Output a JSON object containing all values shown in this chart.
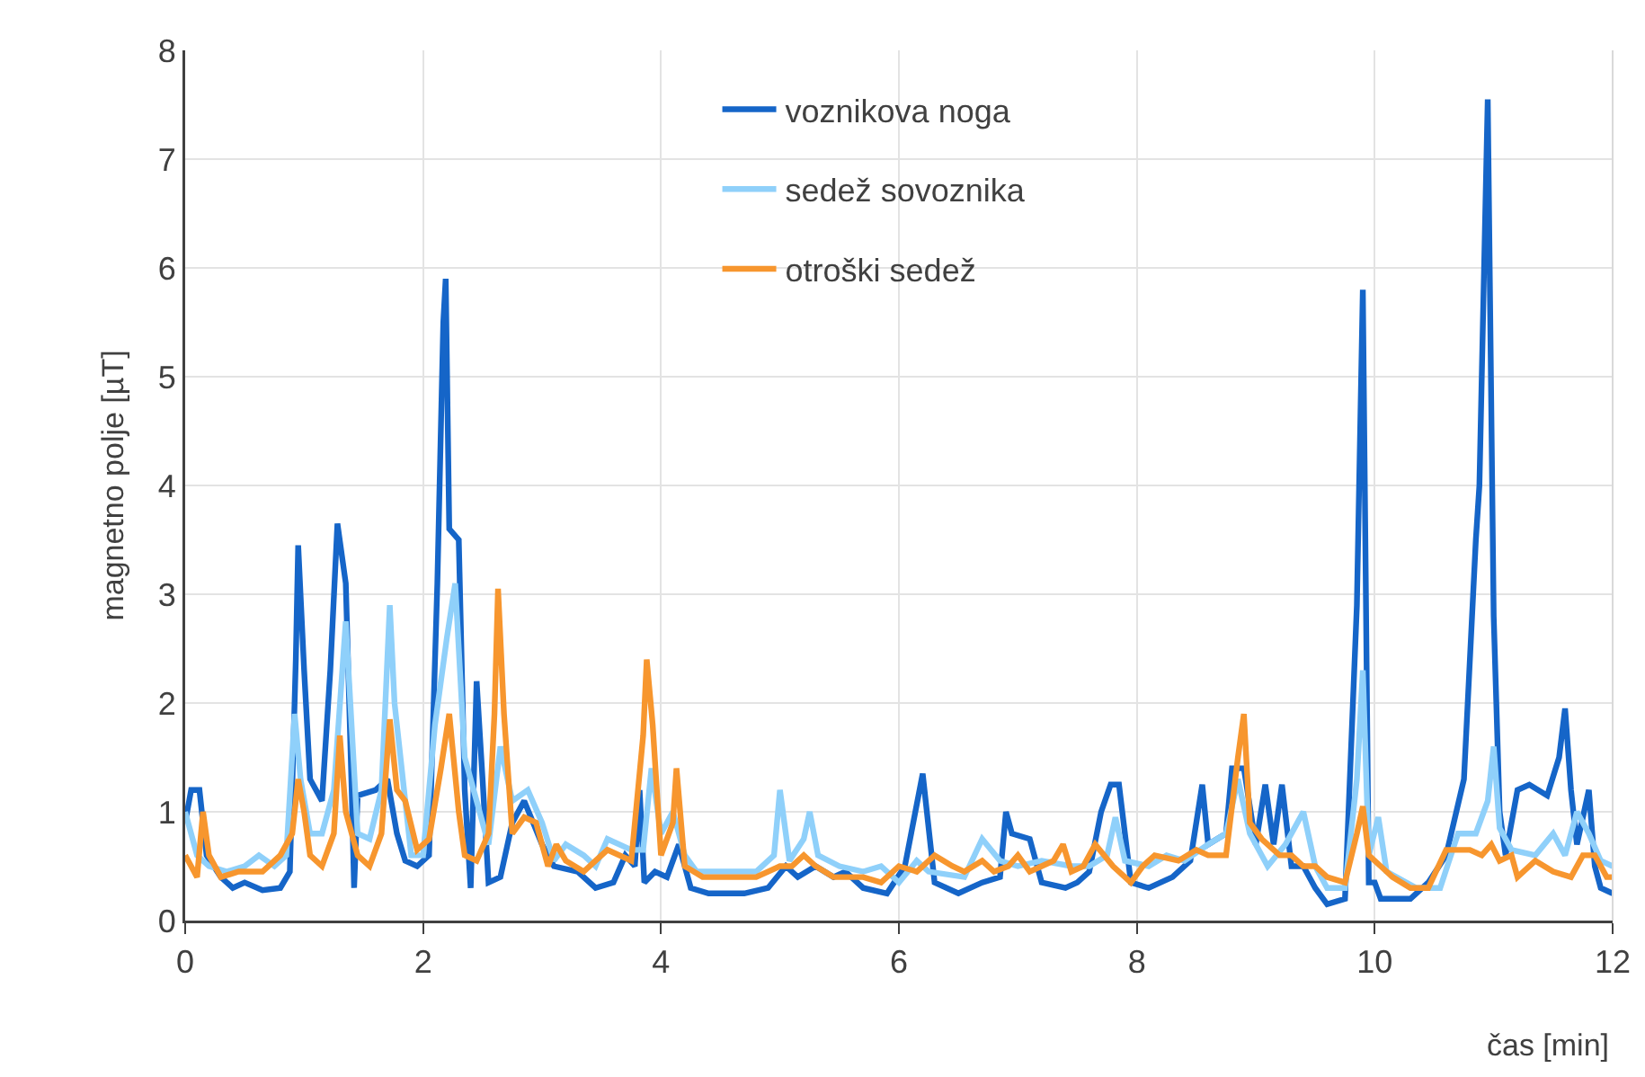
{
  "chart_data": {
    "type": "line",
    "xlabel": "čas [min]",
    "ylabel": "magnetno polje [µT]",
    "xlim": [
      0,
      12
    ],
    "xticks": [
      0,
      2,
      4,
      6,
      8,
      10,
      12
    ],
    "ylim": [
      0,
      8
    ],
    "yticks": [
      0,
      1,
      2,
      3,
      4,
      5,
      6,
      7,
      8
    ],
    "grid": true,
    "legend": "top",
    "marker": "none",
    "line_style": "solid",
    "series": [
      {
        "name": "voznikova noga",
        "color": "#1565c8",
        "x": [
          0,
          0.05,
          0.12,
          0.18,
          0.3,
          0.4,
          0.5,
          0.65,
          0.8,
          0.88,
          0.93,
          0.95,
          1.0,
          1.05,
          1.15,
          1.22,
          1.28,
          1.35,
          1.4,
          1.42,
          1.45,
          1.6,
          1.7,
          1.78,
          1.85,
          1.95,
          2.05,
          2.12,
          2.17,
          2.19,
          2.22,
          2.3,
          2.35,
          2.4,
          2.45,
          2.5,
          2.55,
          2.65,
          2.75,
          2.85,
          3.0,
          3.1,
          3.3,
          3.45,
          3.6,
          3.7,
          3.78,
          3.82,
          3.86,
          3.95,
          4.05,
          4.15,
          4.25,
          4.4,
          4.7,
          4.9,
          5.05,
          5.15,
          5.3,
          5.45,
          5.55,
          5.7,
          5.9,
          6.05,
          6.2,
          6.3,
          6.5,
          6.7,
          6.85,
          6.9,
          6.95,
          7.1,
          7.2,
          7.4,
          7.5,
          7.6,
          7.7,
          7.78,
          7.85,
          7.95,
          8.1,
          8.3,
          8.45,
          8.55,
          8.6,
          8.75,
          8.8,
          8.9,
          9.0,
          9.08,
          9.15,
          9.22,
          9.3,
          9.4,
          9.5,
          9.6,
          9.75,
          9.85,
          9.9,
          9.95,
          10.0,
          10.05,
          10.3,
          10.45,
          10.6,
          10.75,
          10.85,
          10.88,
          10.95,
          11.0,
          11.05,
          11.1,
          11.2,
          11.3,
          11.45,
          11.55,
          11.6,
          11.65,
          11.7,
          11.8,
          11.85,
          11.9,
          12.0
        ],
        "values": [
          0.9,
          1.2,
          1.2,
          0.6,
          0.4,
          0.3,
          0.35,
          0.28,
          0.3,
          0.45,
          2.4,
          3.45,
          2.3,
          1.3,
          1.1,
          2.3,
          3.65,
          3.1,
          1.2,
          0.3,
          1.15,
          1.2,
          1.3,
          0.8,
          0.55,
          0.5,
          0.6,
          3.1,
          5.5,
          5.9,
          3.6,
          3.5,
          1.2,
          0.3,
          2.2,
          1.3,
          0.35,
          0.4,
          0.9,
          1.1,
          0.7,
          0.5,
          0.45,
          0.3,
          0.35,
          0.6,
          0.5,
          1.2,
          0.35,
          0.45,
          0.4,
          0.7,
          0.3,
          0.25,
          0.25,
          0.3,
          0.5,
          0.4,
          0.5,
          0.4,
          0.45,
          0.3,
          0.25,
          0.5,
          1.35,
          0.35,
          0.25,
          0.35,
          0.4,
          1.0,
          0.8,
          0.75,
          0.35,
          0.3,
          0.35,
          0.45,
          1.0,
          1.25,
          1.25,
          0.35,
          0.3,
          0.4,
          0.55,
          1.25,
          0.7,
          0.8,
          1.4,
          1.4,
          0.7,
          1.25,
          0.7,
          1.25,
          0.5,
          0.5,
          0.3,
          0.15,
          0.2,
          2.9,
          5.8,
          0.35,
          0.35,
          0.2,
          0.2,
          0.35,
          0.6,
          1.3,
          3.5,
          4.0,
          7.55,
          2.8,
          1.0,
          0.6,
          1.2,
          1.25,
          1.15,
          1.5,
          1.95,
          1.2,
          0.7,
          1.2,
          0.5,
          0.3,
          0.25
        ]
      },
      {
        "name": "sedež sovoznika",
        "color": "#8fd0fa",
        "x": [
          0,
          0.1,
          0.2,
          0.35,
          0.5,
          0.62,
          0.75,
          0.85,
          0.92,
          0.97,
          1.05,
          1.15,
          1.25,
          1.35,
          1.45,
          1.55,
          1.65,
          1.72,
          1.76,
          1.8,
          1.9,
          2.0,
          2.1,
          2.2,
          2.27,
          2.35,
          2.45,
          2.55,
          2.65,
          2.75,
          2.88,
          3.0,
          3.1,
          3.2,
          3.35,
          3.45,
          3.55,
          3.75,
          3.85,
          3.92,
          4.0,
          4.1,
          4.2,
          4.3,
          4.8,
          4.95,
          5.0,
          5.08,
          5.2,
          5.25,
          5.32,
          5.5,
          5.7,
          5.85,
          6.0,
          6.15,
          6.25,
          6.55,
          6.7,
          6.85,
          7.0,
          7.2,
          7.45,
          7.6,
          7.75,
          7.82,
          7.9,
          8.1,
          8.25,
          8.4,
          8.6,
          8.75,
          8.85,
          8.95,
          9.1,
          9.25,
          9.35,
          9.4,
          9.5,
          9.6,
          9.75,
          9.85,
          9.9,
          9.95,
          10.03,
          10.1,
          10.35,
          10.55,
          10.7,
          10.85,
          10.95,
          11.0,
          11.05,
          11.15,
          11.35,
          11.5,
          11.6,
          11.7,
          11.8,
          11.9,
          12.0
        ],
        "values": [
          1.0,
          0.6,
          0.5,
          0.45,
          0.5,
          0.6,
          0.5,
          0.6,
          1.9,
          1.3,
          0.8,
          0.8,
          1.2,
          2.75,
          0.8,
          0.75,
          1.2,
          2.9,
          2.0,
          1.6,
          0.6,
          0.6,
          1.8,
          2.6,
          3.1,
          1.5,
          1.1,
          0.7,
          1.6,
          1.1,
          1.2,
          0.9,
          0.55,
          0.7,
          0.6,
          0.5,
          0.75,
          0.65,
          0.65,
          1.4,
          0.8,
          1.0,
          0.6,
          0.45,
          0.45,
          0.6,
          1.2,
          0.55,
          0.75,
          1.0,
          0.6,
          0.5,
          0.45,
          0.5,
          0.35,
          0.55,
          0.45,
          0.4,
          0.75,
          0.55,
          0.5,
          0.55,
          0.5,
          0.5,
          0.6,
          0.95,
          0.55,
          0.5,
          0.6,
          0.55,
          0.7,
          0.8,
          1.3,
          0.8,
          0.5,
          0.7,
          0.9,
          1.0,
          0.5,
          0.3,
          0.3,
          1.3,
          2.3,
          0.6,
          0.95,
          0.45,
          0.3,
          0.3,
          0.8,
          0.8,
          1.1,
          1.6,
          0.85,
          0.65,
          0.6,
          0.8,
          0.6,
          1.0,
          0.8,
          0.55,
          0.5
        ]
      },
      {
        "name": "otroški sedež",
        "color": "#f7962e",
        "x": [
          0,
          0.05,
          0.1,
          0.15,
          0.2,
          0.3,
          0.45,
          0.65,
          0.8,
          0.9,
          0.95,
          1.0,
          1.05,
          1.15,
          1.25,
          1.3,
          1.35,
          1.45,
          1.55,
          1.65,
          1.72,
          1.78,
          1.85,
          1.95,
          2.05,
          2.15,
          2.22,
          2.3,
          2.35,
          2.45,
          2.55,
          2.6,
          2.63,
          2.68,
          2.75,
          2.85,
          2.95,
          3.05,
          3.12,
          3.2,
          3.35,
          3.45,
          3.55,
          3.75,
          3.85,
          3.88,
          3.93,
          4.0,
          4.1,
          4.13,
          4.2,
          4.35,
          4.8,
          5.0,
          5.1,
          5.2,
          5.3,
          5.45,
          5.7,
          5.85,
          6.0,
          6.15,
          6.3,
          6.45,
          6.55,
          6.7,
          6.8,
          6.92,
          7.0,
          7.1,
          7.2,
          7.3,
          7.38,
          7.45,
          7.55,
          7.65,
          7.8,
          7.95,
          8.05,
          8.15,
          8.35,
          8.5,
          8.6,
          8.75,
          8.85,
          8.9,
          8.95,
          9.05,
          9.2,
          9.3,
          9.4,
          9.5,
          9.6,
          9.75,
          9.85,
          9.9,
          9.95,
          10.05,
          10.15,
          10.3,
          10.45,
          10.6,
          10.8,
          10.9,
          10.98,
          11.05,
          11.15,
          11.2,
          11.35,
          11.5,
          11.65,
          11.75,
          11.85,
          11.95,
          12.0
        ],
        "values": [
          0.6,
          0.5,
          0.4,
          1.0,
          0.6,
          0.4,
          0.45,
          0.45,
          0.6,
          0.8,
          1.3,
          1.0,
          0.6,
          0.5,
          0.8,
          1.7,
          1.0,
          0.6,
          0.5,
          0.8,
          1.85,
          1.2,
          1.1,
          0.65,
          0.75,
          1.4,
          1.9,
          1.0,
          0.6,
          0.55,
          0.8,
          1.9,
          3.05,
          1.9,
          0.8,
          0.95,
          0.9,
          0.5,
          0.7,
          0.55,
          0.45,
          0.55,
          0.65,
          0.55,
          1.7,
          2.4,
          1.8,
          0.6,
          0.9,
          1.4,
          0.5,
          0.4,
          0.4,
          0.5,
          0.5,
          0.6,
          0.5,
          0.4,
          0.4,
          0.35,
          0.5,
          0.45,
          0.6,
          0.5,
          0.45,
          0.55,
          0.45,
          0.5,
          0.6,
          0.45,
          0.5,
          0.55,
          0.7,
          0.45,
          0.5,
          0.7,
          0.5,
          0.35,
          0.5,
          0.6,
          0.55,
          0.65,
          0.6,
          0.6,
          1.5,
          1.9,
          0.9,
          0.75,
          0.6,
          0.6,
          0.5,
          0.5,
          0.4,
          0.35,
          0.8,
          1.05,
          0.6,
          0.5,
          0.4,
          0.3,
          0.3,
          0.65,
          0.65,
          0.6,
          0.7,
          0.55,
          0.6,
          0.4,
          0.55,
          0.45,
          0.4,
          0.6,
          0.6,
          0.4,
          0.4
        ]
      }
    ]
  }
}
